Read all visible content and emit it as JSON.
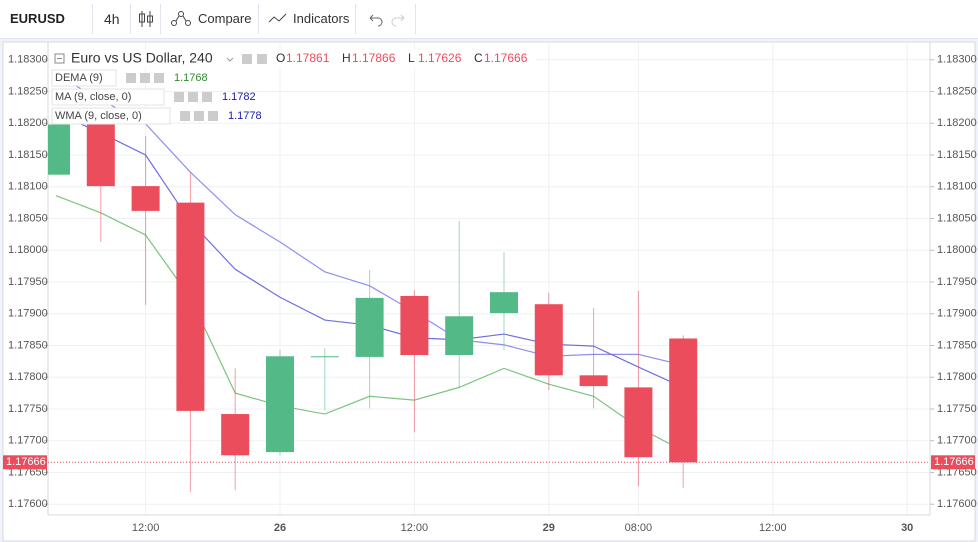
{
  "toolbar": {
    "symbol": "EURUSD",
    "interval": "4h",
    "compare": "Compare",
    "indicators": "Indicators"
  },
  "chart_data": {
    "type": "candlestick",
    "title": "Euro vs US Dollar, 240",
    "ohlc_labels": [
      "O",
      "H",
      "L",
      "C"
    ],
    "categories": [
      null,
      null,
      "12:00",
      null,
      null,
      "26",
      null,
      null,
      "12:00",
      null,
      null,
      "29",
      null,
      "08:00",
      null,
      null,
      "12:00",
      null,
      null,
      "30"
    ],
    "open": [
      1.18119,
      1.18198,
      1.18101,
      1.18075,
      1.17742,
      1.17682,
      1.17833,
      1.17832,
      1.17928,
      1.17835,
      1.17901,
      1.17915,
      1.17803,
      1.17784,
      1.17861,
      null,
      null,
      null,
      null,
      null
    ],
    "high": [
      1.18198,
      1.18209,
      1.1818,
      1.18122,
      1.17814,
      1.17843,
      1.17846,
      1.17969,
      1.17937,
      1.18046,
      1.17997,
      1.17933,
      1.17909,
      1.17936,
      1.17866,
      null,
      null,
      null,
      null,
      null
    ],
    "low": [
      1.18119,
      1.18013,
      1.17914,
      1.17619,
      1.17622,
      1.17677,
      1.17748,
      1.17751,
      1.17713,
      1.17783,
      1.17843,
      1.1778,
      1.17751,
      1.17628,
      1.17626,
      null,
      null,
      null,
      null,
      null
    ],
    "close": [
      1.18198,
      1.18101,
      1.18062,
      1.17747,
      1.17677,
      1.17833,
      1.17833,
      1.17925,
      1.17835,
      1.17896,
      1.17934,
      1.17803,
      1.17786,
      1.17674,
      1.17666,
      null,
      null,
      null,
      null,
      null
    ],
    "up_color": "#53b987",
    "down_color": "#eb4d5c",
    "indicators": [
      {
        "name": "DEMA (9)",
        "color": "#7cc47f",
        "label_color": "#2e8b2e",
        "last_value": 1.1768,
        "values": [
          1.18086,
          1.18059,
          1.18024,
          1.17925,
          1.17775,
          1.17755,
          1.17742,
          1.1777,
          1.17764,
          1.17784,
          1.17814,
          1.17789,
          1.1777,
          1.17721,
          1.17684,
          null,
          null,
          null,
          null,
          null
        ]
      },
      {
        "name": "MA (9, close, 0)",
        "color": "#8f8ff2",
        "label_color": "#1a1aa8",
        "last_value": 1.1782,
        "values": [
          1.18276,
          1.18237,
          1.18199,
          1.18123,
          1.18056,
          1.18013,
          1.17966,
          1.17944,
          1.17903,
          1.17859,
          1.17851,
          1.17833,
          1.17836,
          1.17836,
          1.17819,
          null,
          null,
          null,
          null,
          null
        ]
      },
      {
        "name": "WMA (9, close, 0)",
        "color": "#6f6fe0",
        "label_color": "#1a1aa8",
        "last_value": 1.1778,
        "values": [
          1.18216,
          1.18185,
          1.1815,
          1.18045,
          1.1797,
          1.17926,
          1.1789,
          1.17882,
          1.17862,
          1.17859,
          1.17868,
          1.17852,
          1.17849,
          1.17816,
          1.17784,
          null,
          null,
          null,
          null,
          null
        ]
      }
    ],
    "ylim": [
      1.17583,
      1.18328
    ],
    "yticks": [
      {
        "value": 1.183,
        "label": "1.18300"
      },
      {
        "value": 1.1825,
        "label": "1.18250"
      },
      {
        "value": 1.182,
        "label": "1.18200"
      },
      {
        "value": 1.1815,
        "label": "1.18150"
      },
      {
        "value": 1.181,
        "label": "1.18100"
      },
      {
        "value": 1.1805,
        "label": "1.18050"
      },
      {
        "value": 1.18,
        "label": "1.18000"
      },
      {
        "value": 1.1795,
        "label": "1.17950"
      },
      {
        "value": 1.179,
        "label": "1.17900"
      },
      {
        "value": 1.1785,
        "label": "1.17850"
      },
      {
        "value": 1.178,
        "label": "1.17800"
      },
      {
        "value": 1.1775,
        "label": "1.17750"
      },
      {
        "value": 1.177,
        "label": "1.17700"
      },
      {
        "value": 1.1765,
        "label": "1.17650"
      },
      {
        "value": 1.176,
        "label": "1.17600"
      }
    ],
    "grid": true,
    "price_line_color": "#eb4d5c"
  }
}
